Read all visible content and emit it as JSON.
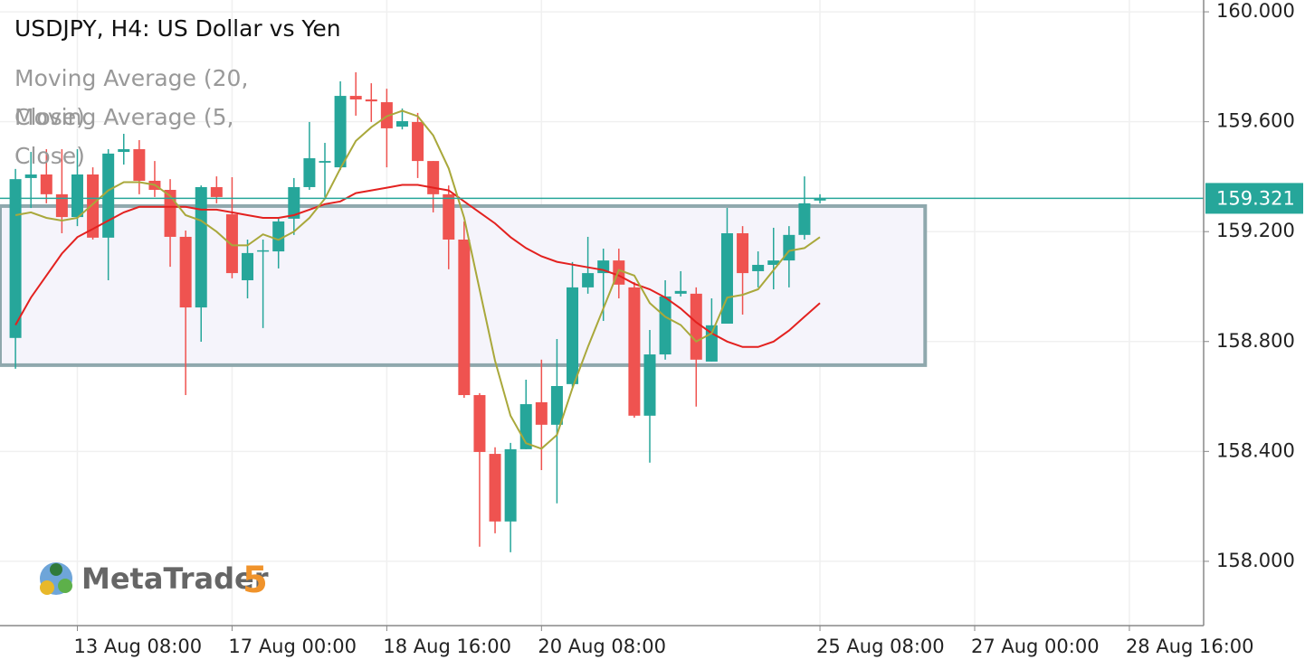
{
  "chart_data": {
    "type": "candlestick",
    "title": "USDJPY, H4: US Dollar vs Yen",
    "up_color": "#26a69a",
    "down_color": "#ef5350",
    "ohlc": {
      "open": [
        158.813,
        159.395,
        159.408,
        159.336,
        159.253,
        159.408,
        159.178,
        159.49,
        159.5,
        159.385,
        159.352,
        159.181,
        158.924,
        159.362,
        159.263,
        159.023,
        159.128,
        159.128,
        159.247,
        159.362,
        159.451,
        159.434,
        159.694,
        159.681,
        159.671,
        159.582,
        159.599,
        159.457,
        159.336,
        159.171,
        158.605,
        158.391,
        158.145,
        158.408,
        158.579,
        158.497,
        158.645,
        158.997,
        159.049,
        159.095,
        158.997,
        158.53,
        158.753,
        158.974,
        158.974,
        158.727,
        158.865,
        159.194,
        159.056,
        159.079,
        159.095,
        159.188,
        159.313
      ],
      "high": [
        159.428,
        159.49,
        159.5,
        159.5,
        159.5,
        159.434,
        159.5,
        159.556,
        159.533,
        159.457,
        159.391,
        159.204,
        159.368,
        159.401,
        159.398,
        159.171,
        159.171,
        159.253,
        159.395,
        159.599,
        159.523,
        159.747,
        159.78,
        159.74,
        159.72,
        159.648,
        159.632,
        159.457,
        159.368,
        159.237,
        158.612,
        158.415,
        158.431,
        158.661,
        158.734,
        158.809,
        159.089,
        159.181,
        159.138,
        159.138,
        159.016,
        158.842,
        159.023,
        159.056,
        158.997,
        158.957,
        159.286,
        159.22,
        159.128,
        159.214,
        159.22,
        159.401,
        159.336
      ],
      "low": [
        158.701,
        159.286,
        159.303,
        159.194,
        159.22,
        159.171,
        159.023,
        159.444,
        159.336,
        159.326,
        159.072,
        158.605,
        158.799,
        159.303,
        159.03,
        158.957,
        158.849,
        159.066,
        159.188,
        159.352,
        159.326,
        159.424,
        159.622,
        159.599,
        159.434,
        159.572,
        159.395,
        159.27,
        159.063,
        158.595,
        158.053,
        158.102,
        158.033,
        158.408,
        158.332,
        158.211,
        158.635,
        158.974,
        158.875,
        158.957,
        158.523,
        158.359,
        158.734,
        158.964,
        158.563,
        158.727,
        158.865,
        158.898,
        158.997,
        158.99,
        158.997,
        159.171,
        159.303
      ],
      "close": [
        159.391,
        159.408,
        159.336,
        159.253,
        159.408,
        159.178,
        159.484,
        159.5,
        159.385,
        159.352,
        159.181,
        158.924,
        159.362,
        159.326,
        159.049,
        159.122,
        159.132,
        159.237,
        159.362,
        159.467,
        159.457,
        159.694,
        159.681,
        159.674,
        159.576,
        159.602,
        159.457,
        159.336,
        159.171,
        158.605,
        158.398,
        158.145,
        158.408,
        158.572,
        158.497,
        158.638,
        158.997,
        159.049,
        159.095,
        159.007,
        158.53,
        158.753,
        158.964,
        158.984,
        158.734,
        158.859,
        159.194,
        159.049,
        159.079,
        159.095,
        159.188,
        159.303,
        159.321
      ]
    },
    "series": [
      {
        "name": "Moving Average (20, Close)",
        "color": "#e3211f",
        "values": [
          158.86,
          158.96,
          159.04,
          159.12,
          159.18,
          159.21,
          159.24,
          159.27,
          159.29,
          159.29,
          159.29,
          159.29,
          159.28,
          159.28,
          159.27,
          159.26,
          159.25,
          159.25,
          159.26,
          159.28,
          159.3,
          159.31,
          159.34,
          159.35,
          159.36,
          159.37,
          159.37,
          159.36,
          159.35,
          159.31,
          159.27,
          159.23,
          159.18,
          159.14,
          159.11,
          159.09,
          159.08,
          159.07,
          159.06,
          159.04,
          159.01,
          158.99,
          158.96,
          158.92,
          158.87,
          158.83,
          158.8,
          158.78,
          158.78,
          158.8,
          158.84,
          158.89,
          158.94
        ]
      },
      {
        "name": "Moving Average (5, Close)",
        "color": "#a9a83b",
        "values": [
          159.26,
          159.27,
          159.25,
          159.24,
          159.25,
          159.3,
          159.35,
          159.38,
          159.38,
          159.37,
          159.33,
          159.26,
          159.24,
          159.2,
          159.15,
          159.15,
          159.19,
          159.17,
          159.2,
          159.25,
          159.32,
          159.43,
          159.53,
          159.58,
          159.62,
          159.64,
          159.62,
          159.55,
          159.43,
          159.25,
          158.99,
          158.73,
          158.53,
          158.43,
          158.41,
          158.46,
          158.63,
          158.78,
          158.92,
          159.06,
          159.04,
          158.94,
          158.89,
          158.86,
          158.8,
          158.83,
          158.96,
          158.97,
          158.99,
          159.06,
          159.13,
          159.14,
          159.18
        ]
      }
    ],
    "current_price": {
      "value": 159.321,
      "label": "159.321",
      "color": "#26a69a"
    },
    "zone": {
      "top": 159.293,
      "bottom": 158.714,
      "start": -1,
      "end": 58.8,
      "color": "#8fa8ad"
    },
    "xlim": [
      -1,
      76.8
    ],
    "ylim": [
      157.766,
      160.043
    ],
    "xticks": [
      {
        "value": 4,
        "label": "13 Aug 08:00"
      },
      {
        "value": 14,
        "label": "17 Aug 00:00"
      },
      {
        "value": 24,
        "label": "18 Aug 16:00"
      },
      {
        "value": 34,
        "label": "20 Aug 08:00"
      },
      {
        "value": 52,
        "label": "25 Aug 08:00"
      },
      {
        "value": 62,
        "label": "27 Aug 00:00"
      },
      {
        "value": 72,
        "label": "28 Aug 16:00"
      }
    ],
    "yticks": [
      {
        "value": 160,
        "label": "160.000"
      },
      {
        "value": 159.6,
        "label": "159.600"
      },
      {
        "value": 159.2,
        "label": "159.200"
      },
      {
        "value": 158.8,
        "label": "158.800"
      },
      {
        "value": 158.4,
        "label": "158.400"
      },
      {
        "value": 158,
        "label": "158.000"
      }
    ],
    "grid": true,
    "watermark": "MetaTrader",
    "watermark_version": "5"
  }
}
